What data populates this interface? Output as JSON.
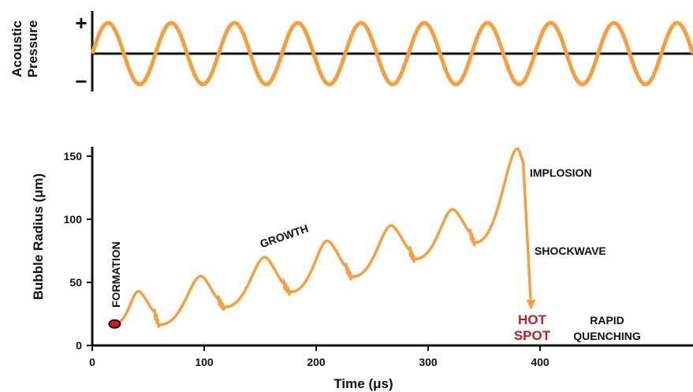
{
  "chart_data": [
    {
      "type": "line",
      "ylabel_lines": [
        "Acoustic",
        "Pressure"
      ],
      "y_markers": {
        "positive": "+",
        "negative": "−"
      },
      "series": [
        {
          "wave": "sine",
          "cycles_visible": 9.5,
          "amplitude": 1
        }
      ],
      "colors": {
        "line": "#f5a040",
        "axis": "#111111"
      }
    },
    {
      "type": "line",
      "xlabel": "Time (μs)",
      "ylabel": "Bubble Radius (μm)",
      "xlim": [
        0,
        400
      ],
      "ylim": [
        0,
        160
      ],
      "xticks": [
        "0",
        "100",
        "200",
        "300",
        "400"
      ],
      "yticks": [
        "0",
        "50",
        "100",
        "150"
      ],
      "series": [
        {
          "x": [
            20,
            41,
            55,
            60,
            97,
            112,
            118,
            154,
            170,
            177,
            210,
            226,
            232,
            267,
            283,
            288,
            322,
            337,
            342,
            380,
            385,
            392
          ],
          "y": [
            17,
            43,
            27,
            15,
            55,
            37,
            29,
            70,
            50,
            41,
            83,
            63,
            53,
            95,
            76,
            67,
            108,
            90,
            80,
            156,
            145,
            30
          ]
        }
      ],
      "formation_point": {
        "x": 20,
        "y": 17
      },
      "annotations": {
        "formation": "FORMATION",
        "growth": "GROWTH",
        "implosion": "IMPLOSION",
        "shockwave": "SHOCKWAVE",
        "hot": "HOT",
        "spot": "SPOT",
        "rapid": "RAPID",
        "quenching": "QUENCHING"
      },
      "colors": {
        "line": "#f5a040",
        "point": "#d11a1a",
        "hot_spot": "#b3232a",
        "axis": "#111111"
      }
    }
  ]
}
